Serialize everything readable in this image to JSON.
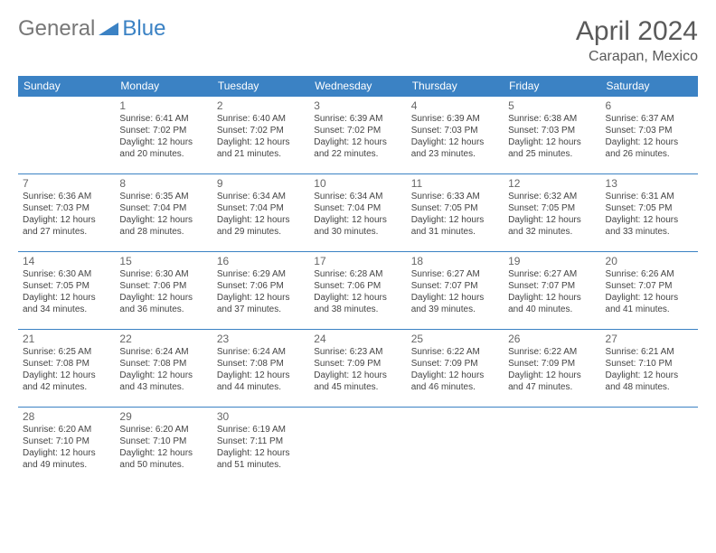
{
  "logo": {
    "general": "General",
    "blue": "Blue"
  },
  "title": "April 2024",
  "location": "Carapan, Mexico",
  "colors": {
    "header_bg": "#3b82c4",
    "header_text": "#ffffff",
    "text": "#444444",
    "title_text": "#5a5a5a",
    "row_border": "#3b82c4",
    "bg": "#ffffff"
  },
  "weekdays": [
    "Sunday",
    "Monday",
    "Tuesday",
    "Wednesday",
    "Thursday",
    "Friday",
    "Saturday"
  ],
  "weeks": [
    [
      {
        "day": "",
        "sunrise": "",
        "sunset": "",
        "daylight": ""
      },
      {
        "day": "1",
        "sunrise": "Sunrise: 6:41 AM",
        "sunset": "Sunset: 7:02 PM",
        "daylight": "Daylight: 12 hours and 20 minutes."
      },
      {
        "day": "2",
        "sunrise": "Sunrise: 6:40 AM",
        "sunset": "Sunset: 7:02 PM",
        "daylight": "Daylight: 12 hours and 21 minutes."
      },
      {
        "day": "3",
        "sunrise": "Sunrise: 6:39 AM",
        "sunset": "Sunset: 7:02 PM",
        "daylight": "Daylight: 12 hours and 22 minutes."
      },
      {
        "day": "4",
        "sunrise": "Sunrise: 6:39 AM",
        "sunset": "Sunset: 7:03 PM",
        "daylight": "Daylight: 12 hours and 23 minutes."
      },
      {
        "day": "5",
        "sunrise": "Sunrise: 6:38 AM",
        "sunset": "Sunset: 7:03 PM",
        "daylight": "Daylight: 12 hours and 25 minutes."
      },
      {
        "day": "6",
        "sunrise": "Sunrise: 6:37 AM",
        "sunset": "Sunset: 7:03 PM",
        "daylight": "Daylight: 12 hours and 26 minutes."
      }
    ],
    [
      {
        "day": "7",
        "sunrise": "Sunrise: 6:36 AM",
        "sunset": "Sunset: 7:03 PM",
        "daylight": "Daylight: 12 hours and 27 minutes."
      },
      {
        "day": "8",
        "sunrise": "Sunrise: 6:35 AM",
        "sunset": "Sunset: 7:04 PM",
        "daylight": "Daylight: 12 hours and 28 minutes."
      },
      {
        "day": "9",
        "sunrise": "Sunrise: 6:34 AM",
        "sunset": "Sunset: 7:04 PM",
        "daylight": "Daylight: 12 hours and 29 minutes."
      },
      {
        "day": "10",
        "sunrise": "Sunrise: 6:34 AM",
        "sunset": "Sunset: 7:04 PM",
        "daylight": "Daylight: 12 hours and 30 minutes."
      },
      {
        "day": "11",
        "sunrise": "Sunrise: 6:33 AM",
        "sunset": "Sunset: 7:05 PM",
        "daylight": "Daylight: 12 hours and 31 minutes."
      },
      {
        "day": "12",
        "sunrise": "Sunrise: 6:32 AM",
        "sunset": "Sunset: 7:05 PM",
        "daylight": "Daylight: 12 hours and 32 minutes."
      },
      {
        "day": "13",
        "sunrise": "Sunrise: 6:31 AM",
        "sunset": "Sunset: 7:05 PM",
        "daylight": "Daylight: 12 hours and 33 minutes."
      }
    ],
    [
      {
        "day": "14",
        "sunrise": "Sunrise: 6:30 AM",
        "sunset": "Sunset: 7:05 PM",
        "daylight": "Daylight: 12 hours and 34 minutes."
      },
      {
        "day": "15",
        "sunrise": "Sunrise: 6:30 AM",
        "sunset": "Sunset: 7:06 PM",
        "daylight": "Daylight: 12 hours and 36 minutes."
      },
      {
        "day": "16",
        "sunrise": "Sunrise: 6:29 AM",
        "sunset": "Sunset: 7:06 PM",
        "daylight": "Daylight: 12 hours and 37 minutes."
      },
      {
        "day": "17",
        "sunrise": "Sunrise: 6:28 AM",
        "sunset": "Sunset: 7:06 PM",
        "daylight": "Daylight: 12 hours and 38 minutes."
      },
      {
        "day": "18",
        "sunrise": "Sunrise: 6:27 AM",
        "sunset": "Sunset: 7:07 PM",
        "daylight": "Daylight: 12 hours and 39 minutes."
      },
      {
        "day": "19",
        "sunrise": "Sunrise: 6:27 AM",
        "sunset": "Sunset: 7:07 PM",
        "daylight": "Daylight: 12 hours and 40 minutes."
      },
      {
        "day": "20",
        "sunrise": "Sunrise: 6:26 AM",
        "sunset": "Sunset: 7:07 PM",
        "daylight": "Daylight: 12 hours and 41 minutes."
      }
    ],
    [
      {
        "day": "21",
        "sunrise": "Sunrise: 6:25 AM",
        "sunset": "Sunset: 7:08 PM",
        "daylight": "Daylight: 12 hours and 42 minutes."
      },
      {
        "day": "22",
        "sunrise": "Sunrise: 6:24 AM",
        "sunset": "Sunset: 7:08 PM",
        "daylight": "Daylight: 12 hours and 43 minutes."
      },
      {
        "day": "23",
        "sunrise": "Sunrise: 6:24 AM",
        "sunset": "Sunset: 7:08 PM",
        "daylight": "Daylight: 12 hours and 44 minutes."
      },
      {
        "day": "24",
        "sunrise": "Sunrise: 6:23 AM",
        "sunset": "Sunset: 7:09 PM",
        "daylight": "Daylight: 12 hours and 45 minutes."
      },
      {
        "day": "25",
        "sunrise": "Sunrise: 6:22 AM",
        "sunset": "Sunset: 7:09 PM",
        "daylight": "Daylight: 12 hours and 46 minutes."
      },
      {
        "day": "26",
        "sunrise": "Sunrise: 6:22 AM",
        "sunset": "Sunset: 7:09 PM",
        "daylight": "Daylight: 12 hours and 47 minutes."
      },
      {
        "day": "27",
        "sunrise": "Sunrise: 6:21 AM",
        "sunset": "Sunset: 7:10 PM",
        "daylight": "Daylight: 12 hours and 48 minutes."
      }
    ],
    [
      {
        "day": "28",
        "sunrise": "Sunrise: 6:20 AM",
        "sunset": "Sunset: 7:10 PM",
        "daylight": "Daylight: 12 hours and 49 minutes."
      },
      {
        "day": "29",
        "sunrise": "Sunrise: 6:20 AM",
        "sunset": "Sunset: 7:10 PM",
        "daylight": "Daylight: 12 hours and 50 minutes."
      },
      {
        "day": "30",
        "sunrise": "Sunrise: 6:19 AM",
        "sunset": "Sunset: 7:11 PM",
        "daylight": "Daylight: 12 hours and 51 minutes."
      },
      {
        "day": "",
        "sunrise": "",
        "sunset": "",
        "daylight": ""
      },
      {
        "day": "",
        "sunrise": "",
        "sunset": "",
        "daylight": ""
      },
      {
        "day": "",
        "sunrise": "",
        "sunset": "",
        "daylight": ""
      },
      {
        "day": "",
        "sunrise": "",
        "sunset": "",
        "daylight": ""
      }
    ]
  ]
}
